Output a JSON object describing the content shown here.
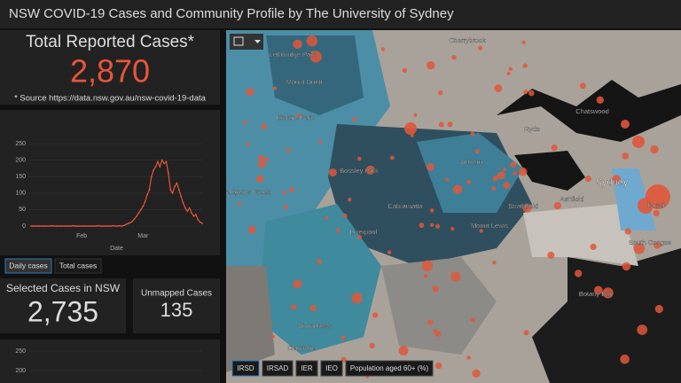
{
  "header": {
    "title": "NSW COVID-19 Cases and Community Profile by The University of Sydney"
  },
  "total": {
    "label": "Total Reported Cases*",
    "value": "2,870",
    "note": "* Source https://data.nsw.gov.au/nsw-covid-19-data"
  },
  "chart_tabs": [
    "Daily cases",
    "Total cases"
  ],
  "selected": {
    "label": "Selected Cases in NSW",
    "value": "2,735"
  },
  "unmapped": {
    "label": "Unmapped Cases",
    "value": "135"
  },
  "chart_data": [
    {
      "type": "line",
      "x_label": "Date",
      "color": "#e8553a",
      "categories": [
        null,
        null,
        null,
        null,
        null,
        null,
        null,
        null,
        null,
        null,
        null,
        null,
        null,
        null,
        null,
        null,
        null,
        null,
        null,
        null,
        null,
        null,
        null,
        null,
        "Feb",
        null,
        null,
        null,
        null,
        null,
        null,
        null,
        null,
        null,
        null,
        null,
        null,
        null,
        null,
        null,
        null,
        null,
        null,
        null,
        null,
        null,
        null,
        null,
        null,
        null,
        null,
        null,
        null,
        "Mar",
        null,
        null,
        null,
        null,
        null,
        null,
        null,
        null,
        null,
        null,
        null,
        null,
        null,
        null,
        null,
        null,
        null,
        null,
        null,
        null,
        null,
        null,
        null,
        null,
        null,
        null,
        null,
        null
      ],
      "values": [
        0,
        0,
        0,
        0,
        0,
        0,
        0,
        0,
        0,
        0,
        1,
        0,
        0,
        0,
        0,
        0,
        0,
        0,
        0,
        0,
        1,
        0,
        0,
        0,
        0,
        0,
        0,
        0,
        0,
        0,
        0,
        0,
        1,
        0,
        0,
        0,
        0,
        0,
        0,
        1,
        0,
        0,
        1,
        0,
        2,
        5,
        8,
        10,
        15,
        22,
        30,
        40,
        50,
        60,
        75,
        95,
        110,
        150,
        170,
        180,
        195,
        180,
        200,
        190,
        195,
        160,
        110,
        100,
        120,
        130,
        110,
        90,
        70,
        55,
        45,
        55,
        40,
        30,
        35,
        20,
        12,
        8
      ],
      "ylim": [
        0,
        250
      ],
      "yticks": [
        0,
        50,
        100,
        150,
        200,
        250
      ]
    },
    {
      "type": "bar",
      "ylim": [
        0,
        250
      ],
      "yticks": [
        200,
        250
      ]
    }
  ],
  "map": {
    "labels": [
      "Lethbridge Park",
      "Mount Druitt",
      "Erskine Park",
      "Bossley Park",
      "Badgerys Creek",
      "Cabramatta",
      "Liverpool",
      "Auburn",
      "Strathfield",
      "Mount Lewis",
      "Ashfield",
      "Sydney",
      "Bondi",
      "Botany Bay",
      "St Andrews",
      "Claymore",
      "Cherrybrook",
      "Chatswood",
      "Ryde",
      "South Coogee"
    ],
    "tabs": [
      "IRSD",
      "IRSAD",
      "IER",
      "IEO",
      "Population aged 60+ (%)"
    ]
  }
}
